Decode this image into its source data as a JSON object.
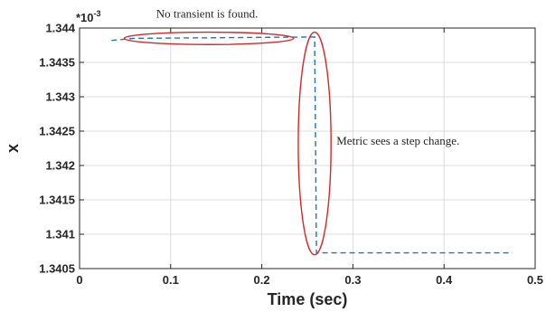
{
  "chart_data": {
    "type": "line",
    "xlabel": "Time (sec)",
    "ylabel": "x",
    "xlim": [
      0,
      0.5
    ],
    "ylim": [
      1.3405,
      1.344
    ],
    "y_exponent_label": "*10",
    "y_exponent_power": "-3",
    "x_ticks": [
      "0",
      "0.1",
      "0.2",
      "0.3",
      "0.4",
      "0.5"
    ],
    "y_ticks": [
      "1.3405",
      "1.341",
      "1.3415",
      "1.342",
      "1.3425",
      "1.343",
      "1.3435",
      "1.344"
    ],
    "grid": true,
    "series": [
      {
        "color": "#1f77b4",
        "style": "dashed",
        "x": [
          0.035,
          0.06,
          0.258,
          0.258,
          0.26,
          0.475
        ],
        "y": [
          1.34382,
          1.34385,
          1.34387,
          1.34387,
          1.34073,
          1.34073
        ]
      }
    ],
    "annotations": [
      {
        "text": "No transient is found.",
        "x": 0.14,
        "y": 1.34415
      },
      {
        "text": "Metric sees a step change.",
        "x": 0.282,
        "y": 1.3423
      }
    ],
    "ellipses": [
      {
        "cx": 0.142,
        "cy": 1.34385,
        "rx": 0.093,
        "ry": 9e-05,
        "color": "#d62728"
      },
      {
        "cx": 0.258,
        "cy": 1.34232,
        "rx": 0.018,
        "ry": 0.00162,
        "color": "#d62728"
      }
    ]
  }
}
